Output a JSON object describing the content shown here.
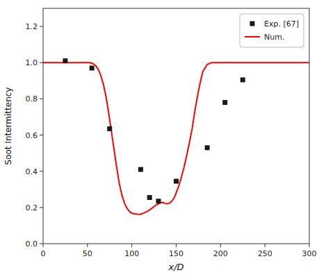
{
  "chart_data": {
    "type": "line",
    "xlabel": "x/D",
    "ylabel": "Soot Intermittency",
    "series": [
      {
        "name": "Exp. [67]",
        "type": "scatter",
        "marker": "square",
        "color": "#1a1a1a",
        "x": [
          25,
          55,
          75,
          110,
          120,
          130,
          150,
          185,
          205,
          225
        ],
        "values": [
          1.01,
          0.97,
          0.635,
          0.41,
          0.255,
          0.235,
          0.345,
          0.53,
          0.78,
          0.905
        ]
      },
      {
        "name": "Num.",
        "type": "line",
        "color": "#ff0000",
        "x": [
          0,
          10,
          20,
          30,
          40,
          50,
          53,
          56,
          59,
          62,
          65,
          68,
          71,
          74,
          77,
          80,
          83,
          86,
          89,
          92,
          95,
          98,
          100,
          103,
          106,
          108,
          110,
          113,
          116,
          119,
          122,
          125,
          128,
          130,
          132,
          134,
          136,
          138,
          140,
          143,
          145,
          148,
          150,
          153,
          156,
          159,
          162,
          165,
          168,
          170,
          172,
          175,
          178,
          180,
          185,
          190,
          200,
          210,
          220,
          230,
          240,
          250,
          260,
          270,
          280,
          290,
          300
        ],
        "values": [
          1.0,
          1.0,
          1.0,
          1.0,
          1.0,
          1.0,
          1.0,
          0.995,
          0.985,
          0.965,
          0.93,
          0.88,
          0.81,
          0.72,
          0.62,
          0.52,
          0.42,
          0.33,
          0.265,
          0.22,
          0.192,
          0.175,
          0.168,
          0.165,
          0.163,
          0.162,
          0.163,
          0.168,
          0.175,
          0.183,
          0.193,
          0.205,
          0.215,
          0.22,
          0.225,
          0.228,
          0.225,
          0.222,
          0.22,
          0.225,
          0.235,
          0.255,
          0.28,
          0.32,
          0.37,
          0.425,
          0.49,
          0.56,
          0.635,
          0.7,
          0.76,
          0.84,
          0.91,
          0.95,
          0.99,
          1.0,
          1.0,
          1.0,
          1.0,
          1.0,
          1.0,
          1.0,
          1.0,
          1.0,
          1.0,
          1.0,
          1.0
        ]
      }
    ],
    "xlim": [
      0,
      300
    ],
    "ylim": [
      0.0,
      1.3
    ],
    "xticks": [
      0,
      50,
      100,
      150,
      200,
      250,
      300
    ],
    "yticks": [
      {
        "value": 0.0,
        "label": "0.0"
      },
      0.2,
      0.4,
      0.6,
      0.8,
      {
        "value": 1.0,
        "label": "1.0"
      },
      1.2
    ],
    "grid": false,
    "legend": "upper right"
  }
}
